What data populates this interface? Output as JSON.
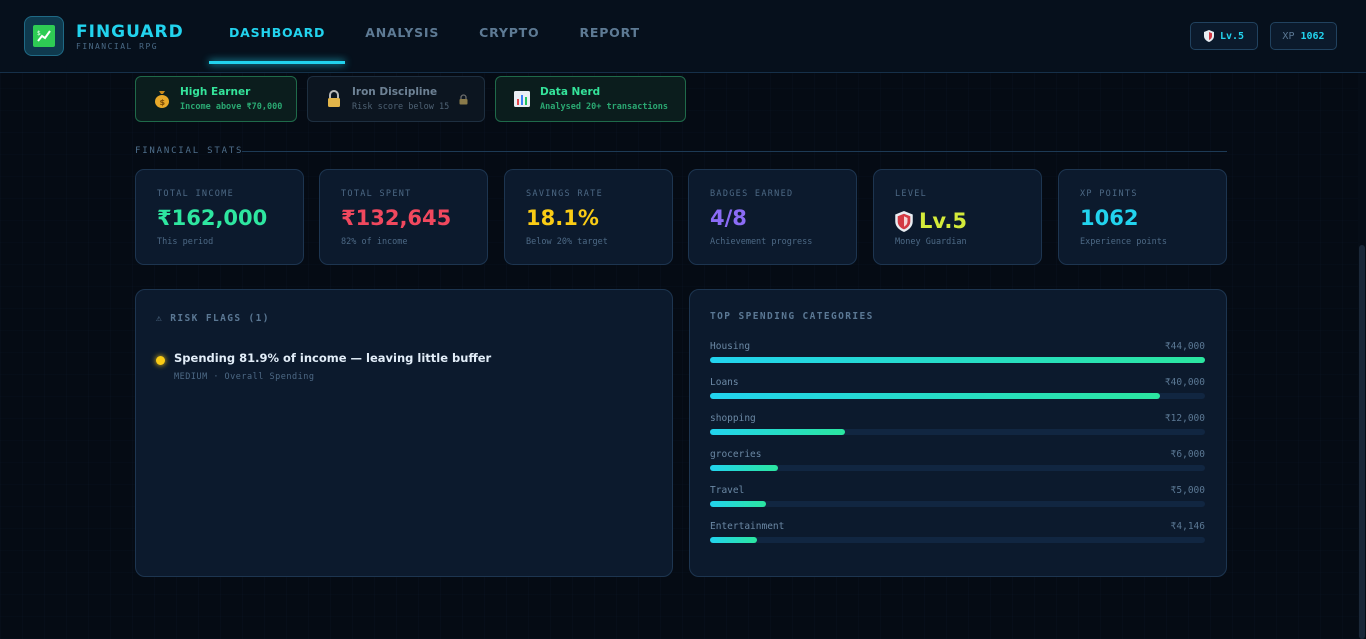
{
  "brand": {
    "name": "FINGUARD",
    "subtitle": "FINANCIAL RPG"
  },
  "nav": [
    "DASHBOARD",
    "ANALYSIS",
    "CRYPTO",
    "REPORT"
  ],
  "header": {
    "level_chip": "Lv.5",
    "xp_label": "XP",
    "xp_value": "1062"
  },
  "achievements": [
    {
      "icon": "money-bag-icon",
      "title": "High Earner",
      "desc": "Income above ₹70,000",
      "earned": true
    },
    {
      "icon": "lock-icon",
      "title": "Iron Discipline",
      "desc": "Risk score below 15",
      "earned": false
    },
    {
      "icon": "bar-chart-icon",
      "title": "Data Nerd",
      "desc": "Analysed 20+ transactions",
      "earned": true
    }
  ],
  "stats_label": "FINANCIAL STATS",
  "stats": [
    {
      "label": "TOTAL INCOME",
      "value": "₹162,000",
      "sub": "This period",
      "color": "#2ee6a0"
    },
    {
      "label": "TOTAL SPENT",
      "value": "₹132,645",
      "sub": "82% of income",
      "color": "#f0485e"
    },
    {
      "label": "SAVINGS RATE",
      "value": "18.1%",
      "sub": "Below 20% target",
      "color": "#facc15"
    },
    {
      "label": "BADGES EARNED",
      "value": "4/8",
      "sub": "Achievement progress",
      "color": "#8b6cf6"
    },
    {
      "label": "LEVEL",
      "value": "Lv.5",
      "sub": "Money Guardian",
      "color": "#d4ea3a"
    },
    {
      "label": "XP POINTS",
      "value": "1062",
      "sub": "Experience points",
      "color": "#22d3ee"
    }
  ],
  "risk": {
    "title": "⚠ RISK FLAGS (1)",
    "items": [
      {
        "text": "Spending 81.9% of income — leaving little buffer",
        "meta": "MEDIUM · Overall Spending",
        "color": "#facc15"
      }
    ]
  },
  "categories": {
    "title": "TOP SPENDING CATEGORIES",
    "items": [
      {
        "name": "Housing",
        "amount": "₹44,000",
        "value": 44000
      },
      {
        "name": "Loans",
        "amount": "₹40,000",
        "value": 40000
      },
      {
        "name": "shopping",
        "amount": "₹12,000",
        "value": 12000
      },
      {
        "name": "groceries",
        "amount": "₹6,000",
        "value": 6000
      },
      {
        "name": "Travel",
        "amount": "₹5,000",
        "value": 5000
      },
      {
        "name": "Entertainment",
        "amount": "₹4,146",
        "value": 4146
      }
    ]
  }
}
